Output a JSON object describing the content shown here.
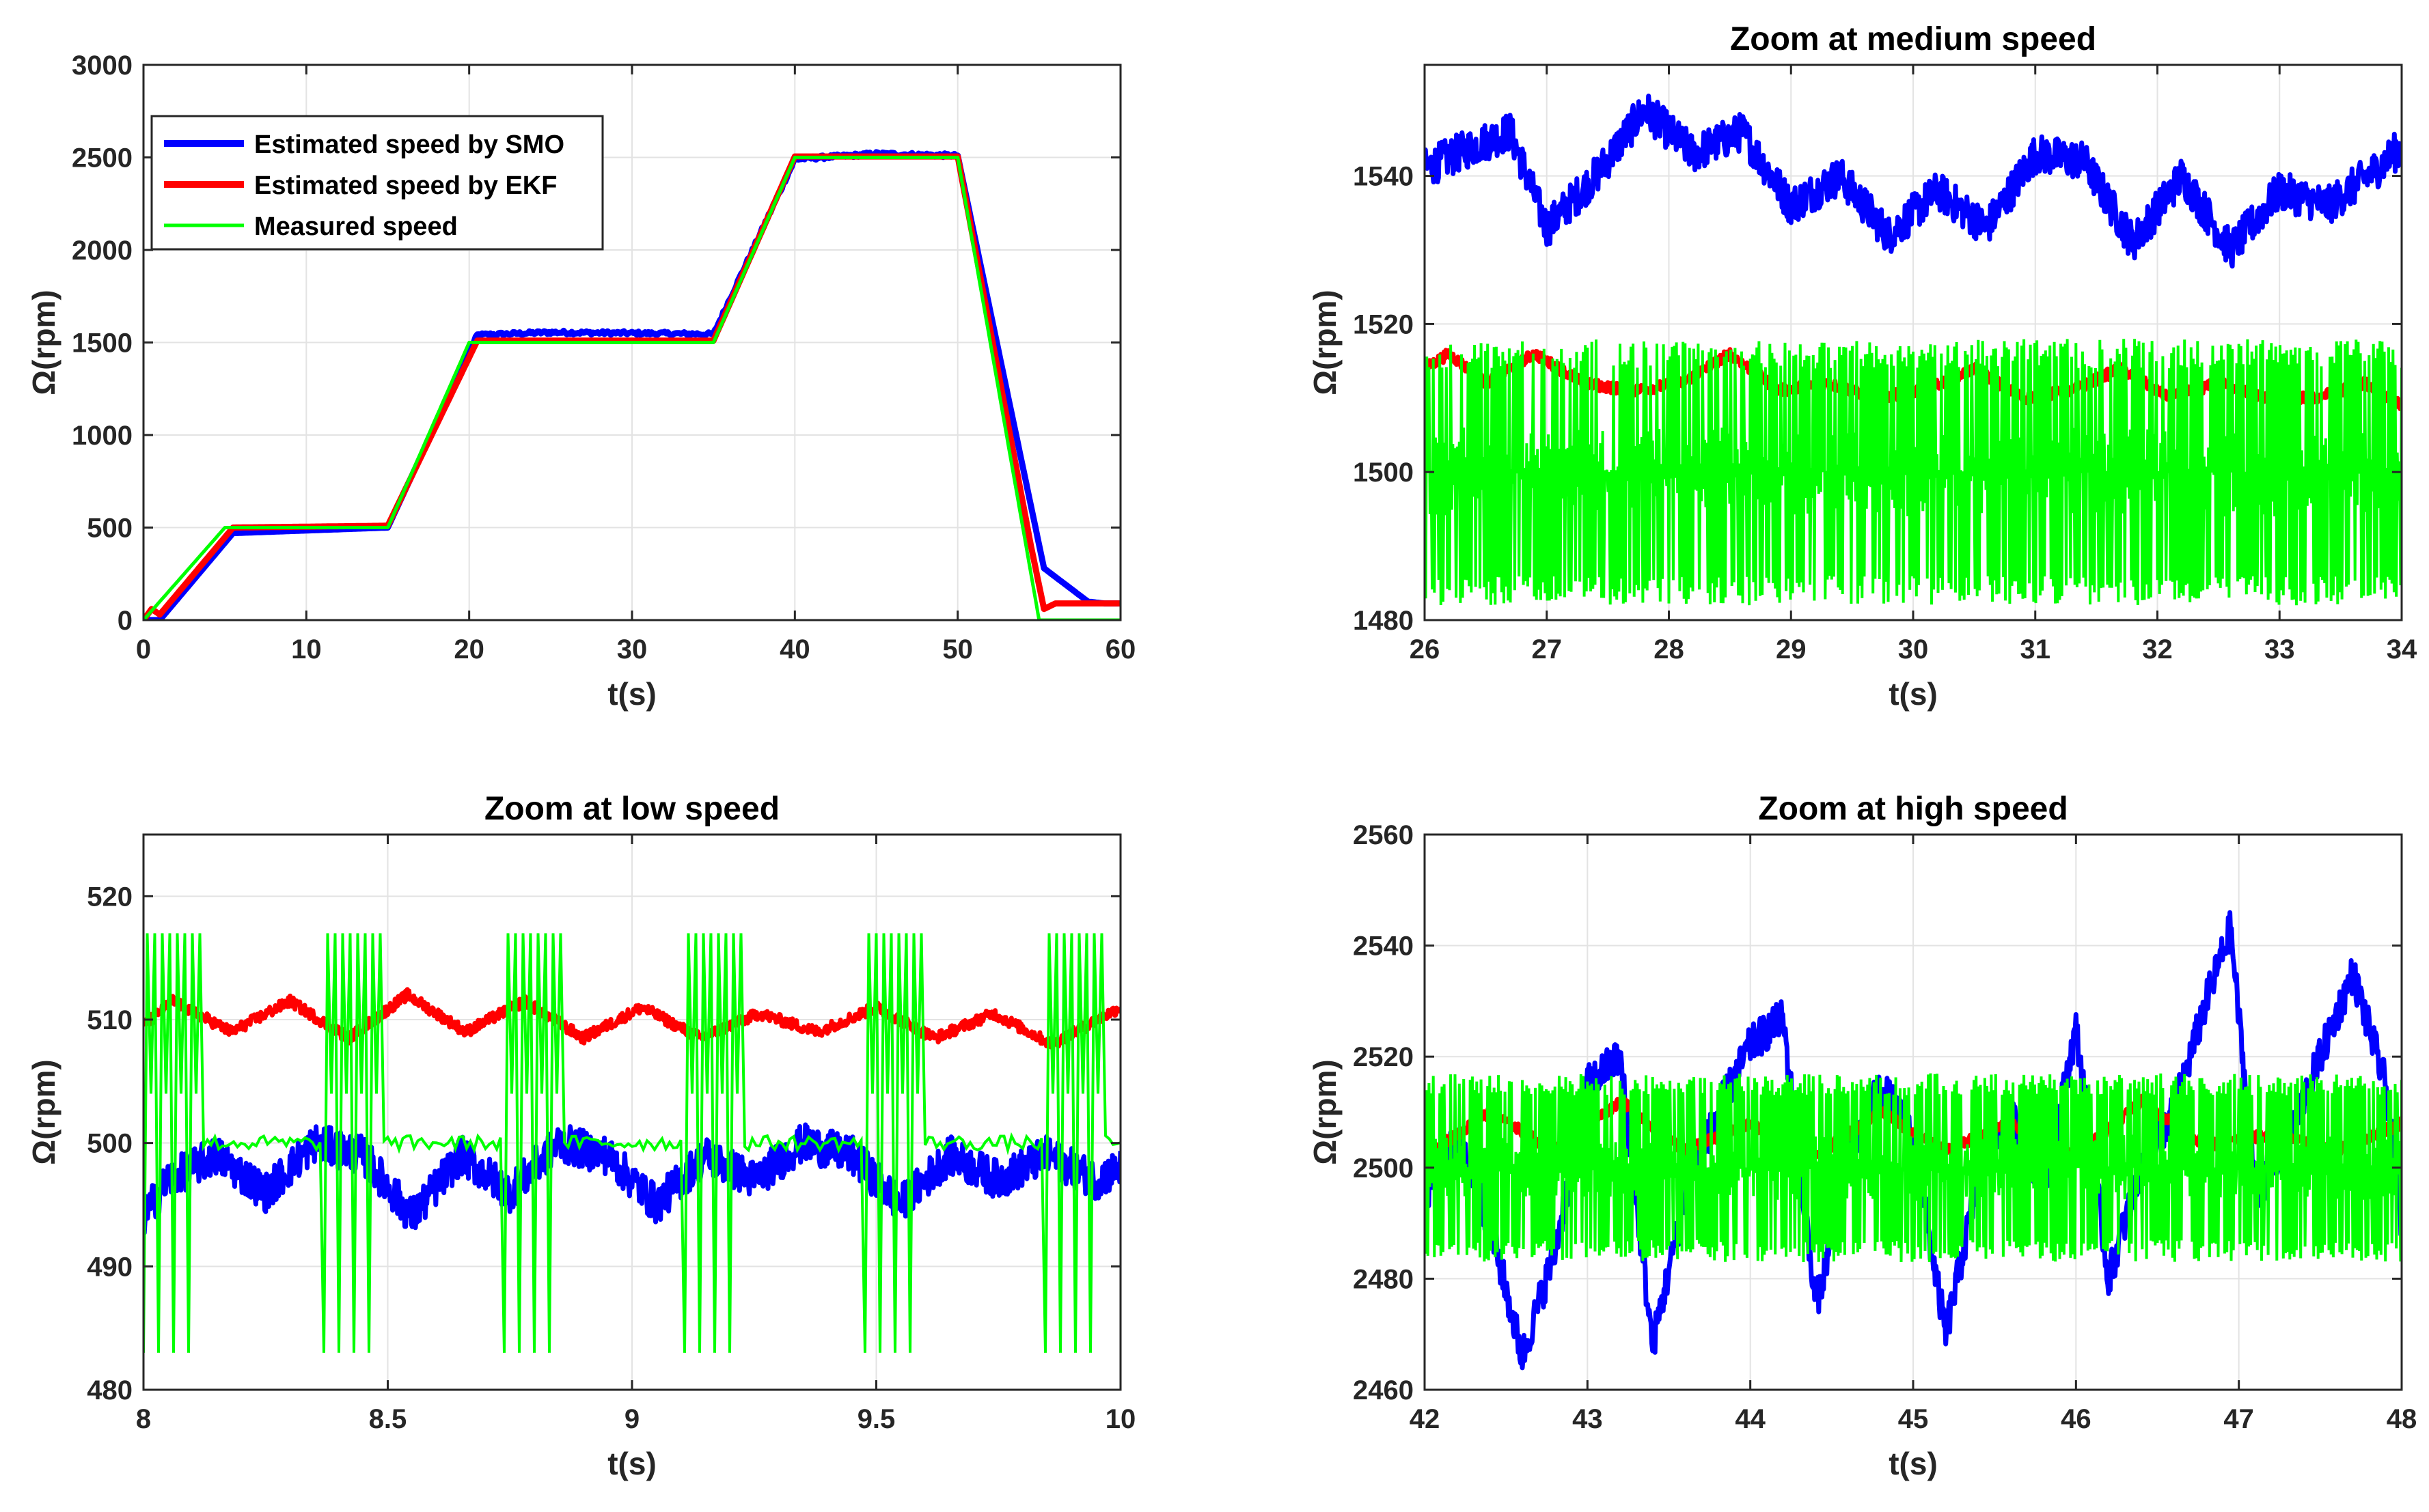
{
  "colors": {
    "smo": "#0000ff",
    "ekf": "#ff0000",
    "measured": "#00ff00",
    "grid": "#e3e3e3",
    "axis": "#262626"
  },
  "chart_data": [
    {
      "id": "full",
      "type": "line",
      "title": "",
      "xlabel": "t(s)",
      "ylabel": "Ω(rpm)",
      "xlim": [
        0,
        60
      ],
      "ylim": [
        0,
        3000
      ],
      "xticks": [
        0,
        10,
        20,
        30,
        40,
        50,
        60
      ],
      "yticks": [
        0,
        500,
        1000,
        1500,
        2000,
        2500,
        3000
      ],
      "grid": true,
      "legend": {
        "position": "top-left",
        "entries": [
          "Estimated speed by SMO",
          "Estimated speed by EKF",
          "Measured speed"
        ]
      },
      "series": [
        {
          "name": "Estimated speed by SMO",
          "color_key": "smo",
          "x": [
            0,
            1,
            5.5,
            15,
            20.5,
            25,
            35,
            40,
            45,
            50,
            55.3,
            58,
            59
          ],
          "y": [
            0,
            0,
            470,
            500,
            1540,
            1555,
            1545,
            2490,
            2520,
            2510,
            280,
            100,
            90
          ]
        },
        {
          "name": "Estimated speed by EKF",
          "color_key": "ekf",
          "x": [
            0,
            0.5,
            1,
            5.5,
            15,
            20.5,
            35,
            40,
            50,
            54.5,
            55.3,
            56,
            59
          ],
          "y": [
            0,
            60,
            30,
            500,
            510,
            1510,
            1510,
            2505,
            2505,
            400,
            60,
            90,
            90
          ]
        },
        {
          "name": "Measured speed",
          "color_key": "measured",
          "x": [
            0,
            5,
            15,
            20,
            35,
            40,
            50,
            55,
            56,
            59
          ],
          "y": [
            0,
            500,
            500,
            1500,
            1500,
            2500,
            2500,
            0,
            0,
            0
          ]
        }
      ]
    },
    {
      "id": "medium",
      "type": "line",
      "title": "Zoom at medium speed",
      "xlabel": "t(s)",
      "ylabel": "Ω(rpm)",
      "xlim": [
        26,
        34
      ],
      "ylim": [
        1480,
        1555
      ],
      "xticks": [
        26,
        27,
        28,
        29,
        30,
        31,
        32,
        33,
        34
      ],
      "yticks": [
        1480,
        1500,
        1520,
        1540
      ],
      "grid": true,
      "series": [
        {
          "name": "Estimated speed by SMO",
          "color_key": "smo",
          "x": [
            26,
            26.4,
            26.7,
            27.0,
            27.4,
            27.8,
            28.2,
            28.6,
            29.0,
            29.4,
            29.8,
            30.2,
            30.6,
            31.0,
            31.4,
            31.8,
            32.2,
            32.6,
            33.0,
            33.4,
            33.8,
            34
          ],
          "y": [
            1541,
            1544,
            1546,
            1533,
            1540,
            1549,
            1543,
            1546,
            1536,
            1540,
            1532,
            1538,
            1533,
            1543,
            1542,
            1531,
            1540,
            1530,
            1538,
            1536,
            1541,
            1544
          ]
        },
        {
          "name": "Estimated speed by EKF",
          "color_key": "ekf",
          "x": [
            26,
            26.2,
            26.5,
            26.9,
            27.3,
            27.7,
            28.1,
            28.5,
            28.9,
            29.3,
            29.7,
            30.1,
            30.5,
            30.9,
            31.3,
            31.7,
            32.1,
            32.5,
            32.9,
            33.3,
            33.7,
            34
          ],
          "y": [
            1514,
            1516,
            1512,
            1516,
            1512,
            1511,
            1512,
            1516,
            1511,
            1512,
            1510,
            1511,
            1514,
            1510,
            1511,
            1514,
            1510,
            1512,
            1510,
            1510,
            1512,
            1509
          ]
        },
        {
          "name": "Measured speed",
          "color_key": "measured",
          "x": [
            26,
            34
          ],
          "y": [
            1500,
            1500
          ],
          "band": [
            1482,
            1518
          ]
        }
      ]
    },
    {
      "id": "low",
      "type": "line",
      "title": "Zoom at low speed",
      "xlabel": "t(s)",
      "ylabel": "Ω(rpm)",
      "xlim": [
        8,
        10
      ],
      "ylim": [
        480,
        525
      ],
      "xticks": [
        8,
        8.5,
        9,
        9.5,
        10
      ],
      "xticklabels": [
        "8",
        "8.5",
        "9",
        "9.5",
        "10"
      ],
      "yticks": [
        480,
        490,
        500,
        510,
        520
      ],
      "grid": true,
      "series": [
        {
          "name": "Estimated speed by SMO",
          "color_key": "smo",
          "x": [
            8,
            8.05,
            8.15,
            8.25,
            8.35,
            8.45,
            8.55,
            8.65,
            8.75,
            8.85,
            8.95,
            9.05,
            9.15,
            9.25,
            9.35,
            9.45,
            9.55,
            9.65,
            9.75,
            9.85,
            9.95,
            10
          ],
          "y": [
            494,
            497,
            499,
            496,
            500,
            499,
            494,
            499,
            496,
            500,
            499,
            495,
            499,
            497,
            500,
            499,
            495,
            499,
            497,
            499,
            497,
            498
          ]
        },
        {
          "name": "Estimated speed by EKF",
          "color_key": "ekf",
          "x": [
            8,
            8.06,
            8.18,
            8.3,
            8.42,
            8.54,
            8.66,
            8.78,
            8.9,
            9.02,
            9.14,
            9.26,
            9.38,
            9.5,
            9.62,
            9.74,
            9.86,
            10
          ],
          "y": [
            509.5,
            511.5,
            509,
            511.5,
            508.5,
            512,
            509,
            511.5,
            508.5,
            511,
            508.5,
            510.5,
            509,
            511,
            508.5,
            510.5,
            508,
            511
          ]
        },
        {
          "name": "Measured speed",
          "color_key": "measured",
          "x": [
            8,
            10
          ],
          "y": [
            500,
            500
          ],
          "band": [
            483,
            517
          ]
        }
      ]
    },
    {
      "id": "high",
      "type": "line",
      "title": "Zoom at high speed",
      "xlabel": "t(s)",
      "ylabel": "Ω(rpm)",
      "xlim": [
        42,
        48
      ],
      "ylim": [
        2460,
        2560
      ],
      "xticks": [
        42,
        43,
        44,
        45,
        46,
        47,
        48
      ],
      "yticks": [
        2460,
        2480,
        2500,
        2520,
        2540,
        2560
      ],
      "grid": true,
      "series": [
        {
          "name": "Estimated speed by SMO",
          "color_key": "smo",
          "x": [
            42,
            42.2,
            42.4,
            42.6,
            42.8,
            43.0,
            43.2,
            43.4,
            43.6,
            43.8,
            44.0,
            44.2,
            44.4,
            44.6,
            44.8,
            45.0,
            45.2,
            45.4,
            45.6,
            45.8,
            46.0,
            46.2,
            46.4,
            46.6,
            46.8,
            46.95,
            47.1,
            47.3,
            47.5,
            47.7,
            47.9,
            48
          ],
          "y": [
            2495,
            2505,
            2490,
            2466,
            2485,
            2515,
            2520,
            2468,
            2495,
            2510,
            2522,
            2527,
            2475,
            2500,
            2515,
            2505,
            2470,
            2498,
            2510,
            2495,
            2525,
            2480,
            2500,
            2510,
            2530,
            2543,
            2495,
            2505,
            2520,
            2535,
            2515,
            2490
          ]
        },
        {
          "name": "Estimated speed by EKF",
          "color_key": "ekf",
          "x": [
            42,
            42.4,
            42.8,
            43.2,
            43.6,
            44.0,
            44.4,
            44.8,
            45.2,
            45.6,
            46.0,
            46.4,
            46.8,
            47.2,
            47.6,
            48
          ],
          "y": [
            2502,
            2510,
            2503,
            2512,
            2503,
            2508,
            2502,
            2510,
            2503,
            2508,
            2502,
            2512,
            2504,
            2506,
            2503,
            2508
          ]
        },
        {
          "name": "Measured speed",
          "color_key": "measured",
          "x": [
            42,
            48
          ],
          "y": [
            2500,
            2500
          ],
          "band": [
            2483,
            2517
          ]
        }
      ]
    }
  ]
}
